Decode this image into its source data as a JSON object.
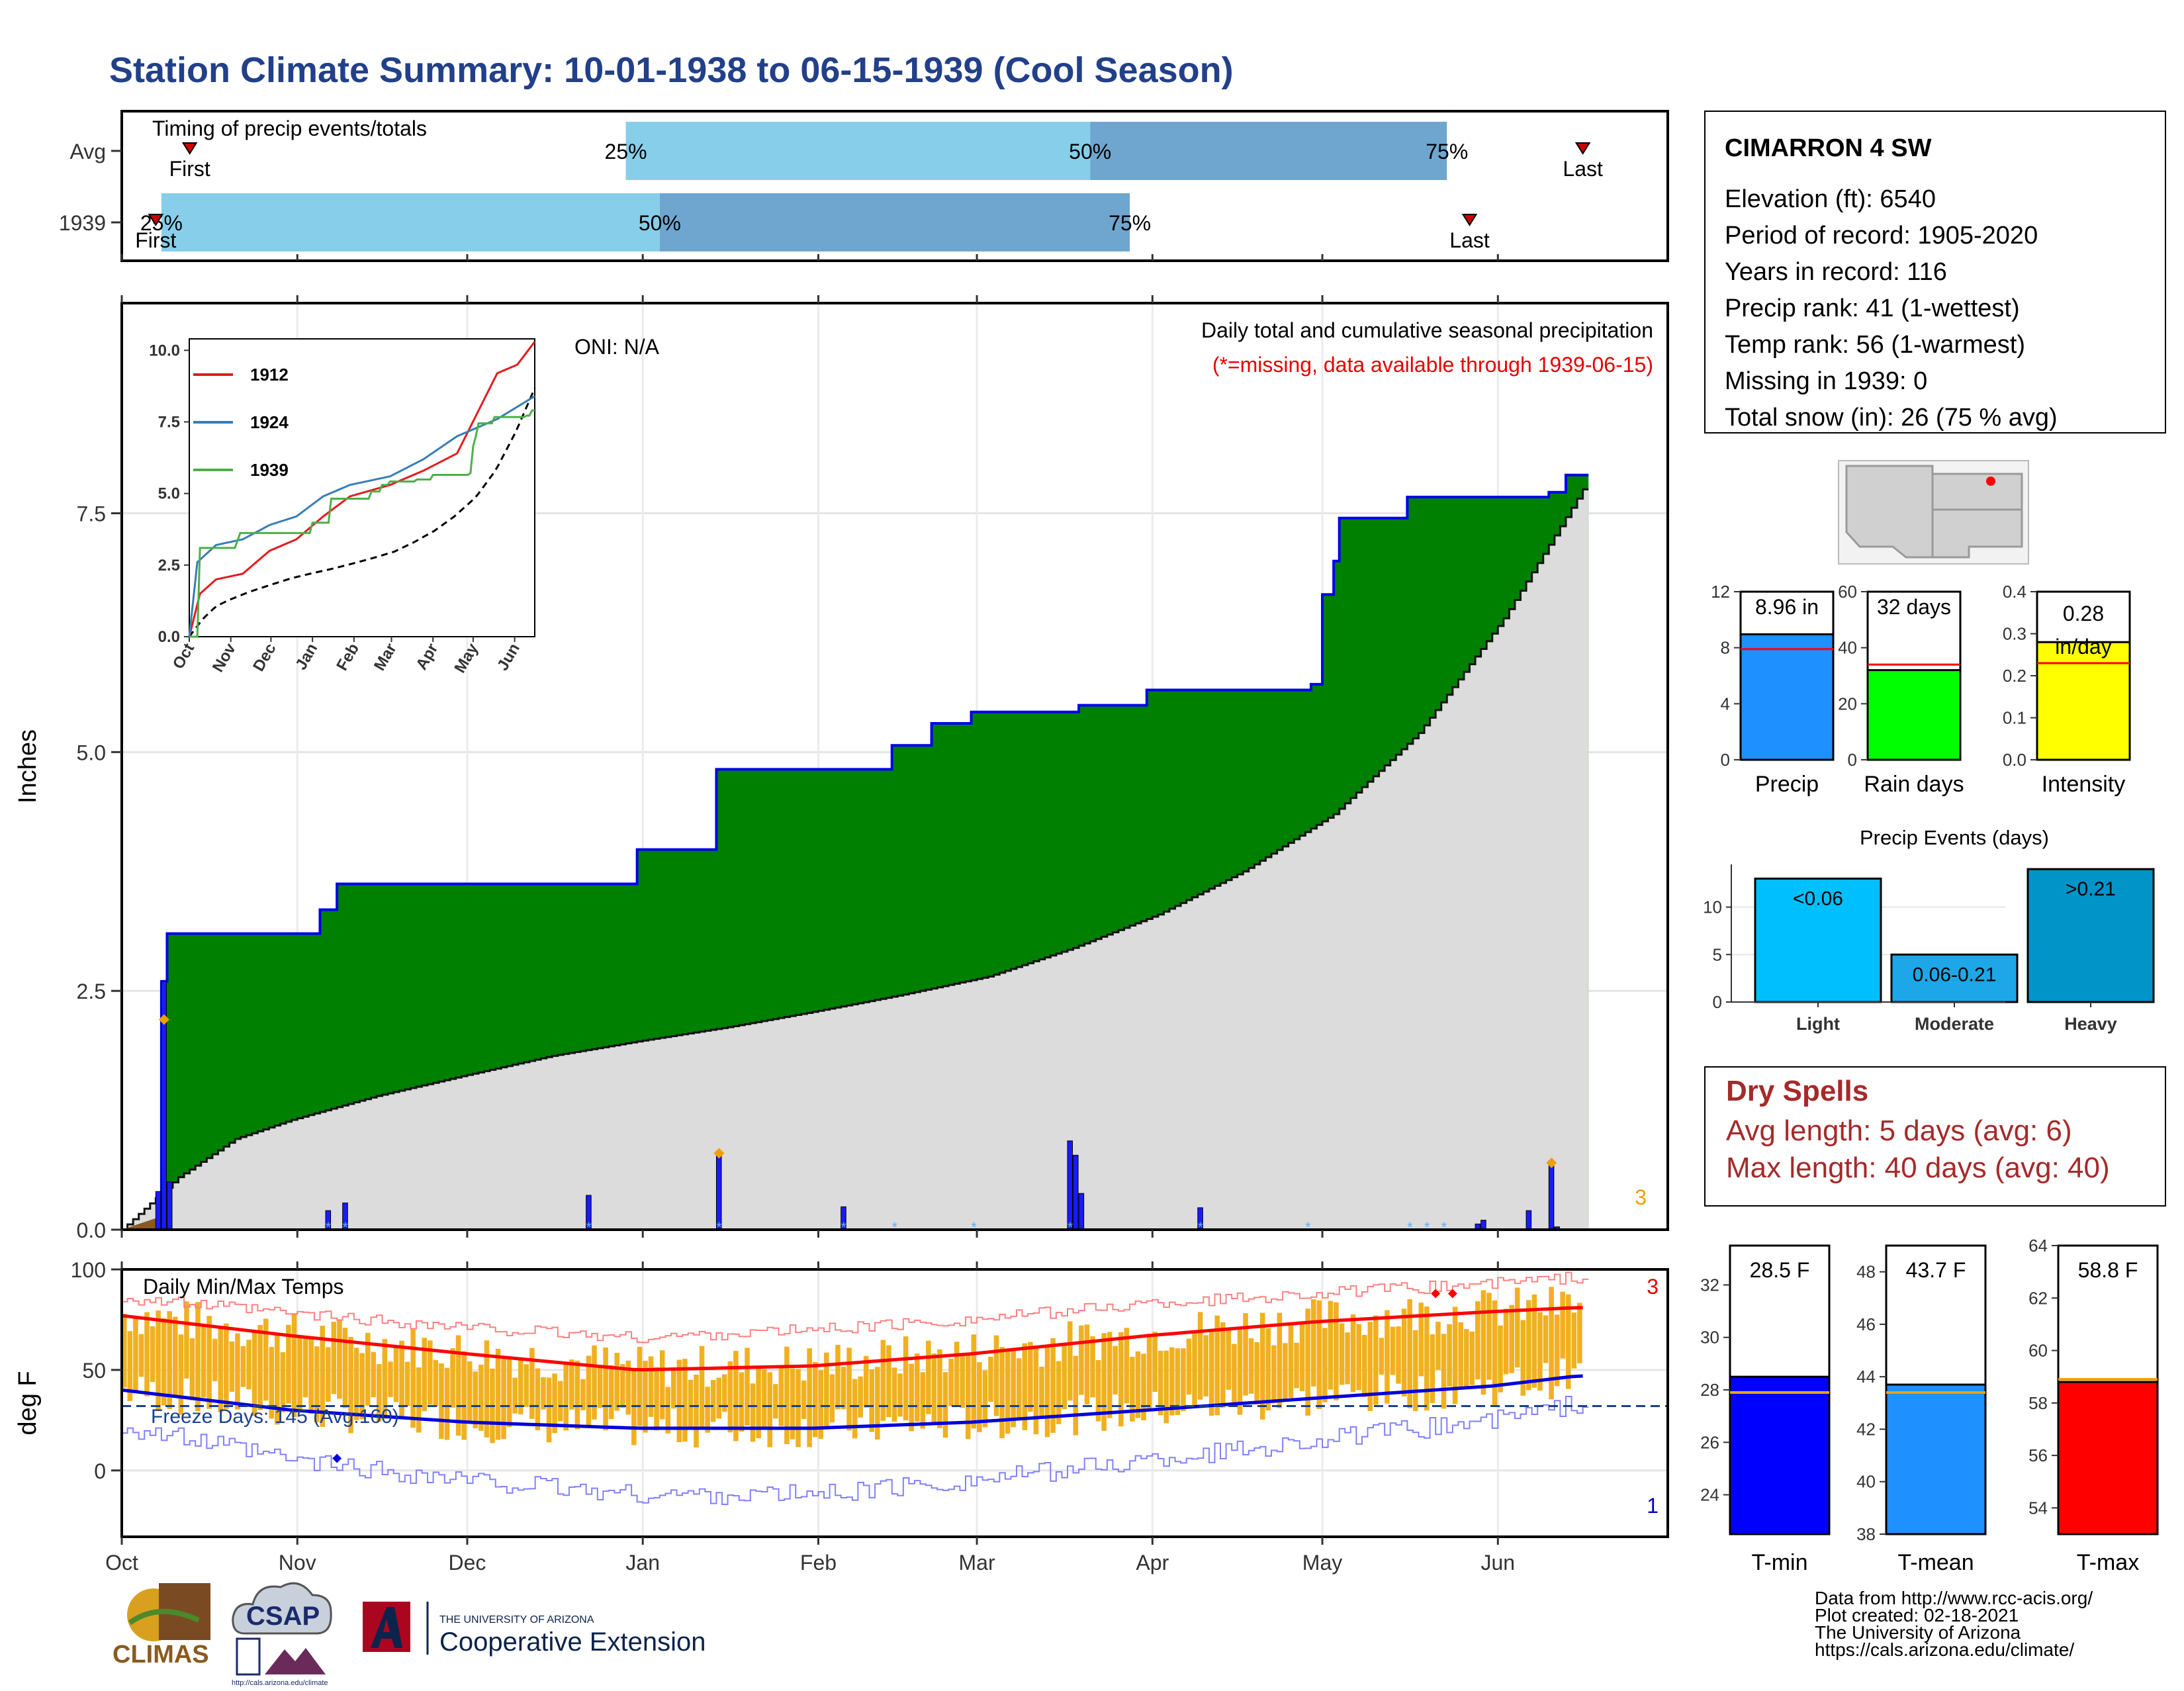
{
  "title": "Station Climate Summary: 10-01-1938 to 06-15-1939 (Cool Season)",
  "colors": {
    "title": "#22408a",
    "light_blue": "#87ceeb",
    "mid_blue": "#6ea6cf",
    "green": "#008000",
    "gray_fill": "#dcdcdc",
    "blue_line": "#0000ee",
    "orange": "#f0b020",
    "red": "#ff0000",
    "dark_red": "#a52a2a"
  },
  "timing_panel": {
    "title": "Timing of precip events/totals",
    "rows": [
      {
        "label": "Avg",
        "first_label": "First",
        "last_label": "Last",
        "p25": "25%",
        "p50": "50%",
        "p75": "75%",
        "first_day": 12,
        "p25_day": 89,
        "p50_day": 171,
        "p75_day": 234,
        "last_day": 258
      },
      {
        "label": "1939",
        "first_label": "First",
        "last_label": "Last",
        "p25": "25%",
        "p50": "50%",
        "p75": "75%",
        "first_day": 6,
        "p25_day": 7,
        "p50_day": 95,
        "p75_day": 178,
        "last_day": 238
      }
    ]
  },
  "precip_panel": {
    "title": "Daily total and cumulative seasonal precipitation",
    "missing_note": "(*=missing, data available through 1939-06-15)",
    "oni": "ONI: N/A",
    "ylabel": "Inches",
    "yticks": [
      "0.0",
      "2.5",
      "5.0",
      "7.5"
    ],
    "corner_count": "3"
  },
  "inset": {
    "yticks": [
      "0.0",
      "2.5",
      "5.0",
      "7.5",
      "10.0"
    ],
    "xticks": [
      "Oct",
      "Nov",
      "Dec",
      "Jan",
      "Feb",
      "Mar",
      "Apr",
      "May",
      "Jun"
    ],
    "legend": [
      {
        "name": "1912",
        "color": "#e41a1c"
      },
      {
        "name": "1924",
        "color": "#377eb8"
      },
      {
        "name": "1939",
        "color": "#4daf4a"
      }
    ]
  },
  "temp_panel": {
    "title": "Daily Min/Max Temps",
    "ylabel": "deg F",
    "yticks": [
      "0",
      "50",
      "100"
    ],
    "freeze_text": "Freeze Days: 145 (Avg:160)",
    "top_count": "3",
    "bottom_count": "1"
  },
  "x_months": [
    "Oct",
    "Nov",
    "Dec",
    "Jan",
    "Feb",
    "Mar",
    "Apr",
    "May",
    "Jun"
  ],
  "station": {
    "name": "CIMARRON 4 SW",
    "lines": [
      "Elevation (ft): 6540",
      "Period of record: 1905-2020",
      "Years in record: 116",
      "Precip rank: 41 (1-wettest)",
      "Temp rank: 56 (1-warmest)",
      "Missing in 1939: 0",
      "Total snow (in): 26 (75 % avg)"
    ]
  },
  "bar_panels": [
    {
      "key": "precip",
      "label": "Precip",
      "value_text": "8.96 in",
      "value": 8.96,
      "avg": 7.9,
      "ymax": 12,
      "ticks": [
        "0",
        "4",
        "8",
        "12"
      ],
      "color": "#1e90ff"
    },
    {
      "key": "raindays",
      "label": "Rain days",
      "value_text": "32 days",
      "value": 32,
      "avg": 34,
      "ymax": 60,
      "ticks": [
        "0",
        "20",
        "40",
        "60"
      ],
      "color": "#00ff00"
    },
    {
      "key": "intensity",
      "label": "Intensity",
      "value_text": "0.28 in/day",
      "value_line1": "0.28",
      "value_line2": "in/day",
      "value": 0.28,
      "avg": 0.23,
      "ymax": 0.4,
      "ticks": [
        "0.0",
        "0.1",
        "0.2",
        "0.3",
        "0.4"
      ],
      "color": "#ffff00"
    }
  ],
  "events": {
    "title": "Precip Events (days)",
    "categories": [
      "Light",
      "Moderate",
      "Heavy"
    ],
    "bar_labels": [
      "<0.06",
      "0.06-0.21",
      ">0.21"
    ],
    "values": [
      13,
      5,
      14
    ],
    "ticks": [
      "0",
      "5",
      "10"
    ],
    "colors": [
      "#00bfff",
      "#1ea7e8",
      "#0094c8"
    ]
  },
  "dry_spells": {
    "title": "Dry Spells",
    "avg_line": "Avg length: 5 days (avg: 6)",
    "max_line": "Max length: 40 days (avg: 40)"
  },
  "temp_bars": [
    {
      "label": "T-min",
      "value_text": "28.5 F",
      "value": 28.5,
      "avg": 27.9,
      "ymin": 22.5,
      "ymax": 33.5,
      "ticks": [
        "24",
        "26",
        "28",
        "30",
        "32"
      ],
      "color": "#0000ff"
    },
    {
      "label": "T-mean",
      "value_text": "43.7 F",
      "value": 43.7,
      "avg": 43.4,
      "ymin": 38,
      "ymax": 49,
      "ticks": [
        "38",
        "40",
        "42",
        "44",
        "46",
        "48"
      ],
      "color": "#1e90ff"
    },
    {
      "label": "T-max",
      "value_text": "58.8 F",
      "value": 58.8,
      "avg": 58.9,
      "ymin": 53,
      "ymax": 64,
      "ticks": [
        "54",
        "56",
        "58",
        "60",
        "62",
        "64"
      ],
      "color": "#ff0000"
    }
  ],
  "footer": {
    "lines": [
      "Data from http://www.rcc-acis.org/",
      "Plot created: 02-18-2021",
      "The University of Arizona",
      "https://cals.arizona.edu/climate/"
    ],
    "climas": "CLIMAS",
    "csap": "CSAP",
    "csap_url": "http://cals.arizona.edu/climate",
    "ua_small": "THE UNIVERSITY OF ARIZONA",
    "ua_large": "Cooperative Extension"
  },
  "chart_data": [
    {
      "type": "area",
      "title": "Daily total and cumulative seasonal precipitation",
      "ylabel": "Inches",
      "ylim": [
        0,
        9.7
      ],
      "x_start": "1938-10-01",
      "x_end": "1939-06-15",
      "cumulative_steps": [
        {
          "date": "1938-10-08",
          "value": 2.6
        },
        {
          "date": "1938-10-09",
          "value": 3.1
        },
        {
          "date": "1938-11-05",
          "value": 3.35
        },
        {
          "date": "1938-11-08",
          "value": 3.62
        },
        {
          "date": "1938-12-31",
          "value": 3.98
        },
        {
          "date": "1939-01-14",
          "value": 4.82
        },
        {
          "date": "1939-02-14",
          "value": 5.07
        },
        {
          "date": "1939-02-21",
          "value": 5.3
        },
        {
          "date": "1939-02-28",
          "value": 5.42
        },
        {
          "date": "1939-03-19",
          "value": 5.49
        },
        {
          "date": "1939-03-31",
          "value": 5.65
        },
        {
          "date": "1939-04-29",
          "value": 5.71
        },
        {
          "date": "1939-05-01",
          "value": 6.65
        },
        {
          "date": "1939-05-03",
          "value": 7.0
        },
        {
          "date": "1939-05-04",
          "value": 7.45
        },
        {
          "date": "1939-05-16",
          "value": 7.67
        },
        {
          "date": "1939-06-10",
          "value": 7.72
        },
        {
          "date": "1939-06-13",
          "value": 7.9
        },
        {
          "date": "1939-06-27",
          "value": 8.78
        },
        {
          "date": "1939-06-29",
          "value": 8.9
        },
        {
          "date": "1939-07-01",
          "value": 8.96
        }
      ],
      "average_cumulative": {
        "days": [
          0,
          10,
          20,
          30,
          45,
          61,
          76,
          92,
          107,
          122,
          137,
          153,
          168,
          183,
          198,
          214,
          229,
          244,
          258
        ],
        "values": [
          0.0,
          0.55,
          0.95,
          1.15,
          1.4,
          1.62,
          1.82,
          1.98,
          2.12,
          2.28,
          2.45,
          2.65,
          2.95,
          3.3,
          3.75,
          4.35,
          5.2,
          6.4,
          7.75
        ]
      },
      "daily_bars": [
        {
          "day": 6,
          "value": 0.4
        },
        {
          "day": 7,
          "value": 2.6
        },
        {
          "day": 8,
          "value": 0.5
        },
        {
          "day": 36,
          "value": 0.2
        },
        {
          "day": 39,
          "value": 0.28
        },
        {
          "day": 82,
          "value": 0.36
        },
        {
          "day": 105,
          "value": 0.82
        },
        {
          "day": 127,
          "value": 0.24
        },
        {
          "day": 167,
          "value": 0.93
        },
        {
          "day": 168,
          "value": 0.78
        },
        {
          "day": 169,
          "value": 0.38
        },
        {
          "day": 190,
          "value": 0.23
        },
        {
          "day": 239,
          "value": 0.06
        },
        {
          "day": 240,
          "value": 0.1
        },
        {
          "day": 248,
          "value": 0.2
        },
        {
          "day": 252,
          "value": 0.72
        },
        {
          "day": 253,
          "value": 0.03
        }
      ]
    },
    {
      "type": "line",
      "title": "Daily Min/Max Temps",
      "ylabel": "deg F",
      "ylim": [
        -33,
        100
      ],
      "freeze_threshold": 32,
      "avg_max": {
        "days": [
          0,
          30,
          61,
          91,
          122,
          150,
          181,
          211,
          242,
          257
        ],
        "values": [
          77,
          67,
          58,
          50,
          52,
          58,
          67,
          74,
          79,
          81
        ]
      },
      "avg_min": {
        "days": [
          0,
          30,
          61,
          91,
          122,
          150,
          181,
          211,
          242,
          257
        ],
        "values": [
          40,
          30,
          24,
          21,
          21,
          24,
          30,
          36,
          42,
          47
        ]
      },
      "record_max": {
        "days": [
          0,
          30,
          61,
          91,
          122,
          150,
          181,
          211,
          242,
          257
        ],
        "values": [
          86,
          78,
          71,
          66,
          70,
          75,
          83,
          88,
          93,
          96
        ]
      },
      "record_min": {
        "days": [
          0,
          30,
          61,
          91,
          122,
          150,
          181,
          211,
          242,
          257
        ],
        "values": [
          22,
          5,
          -5,
          -12,
          -12,
          -5,
          5,
          15,
          25,
          33
        ]
      }
    }
  ]
}
